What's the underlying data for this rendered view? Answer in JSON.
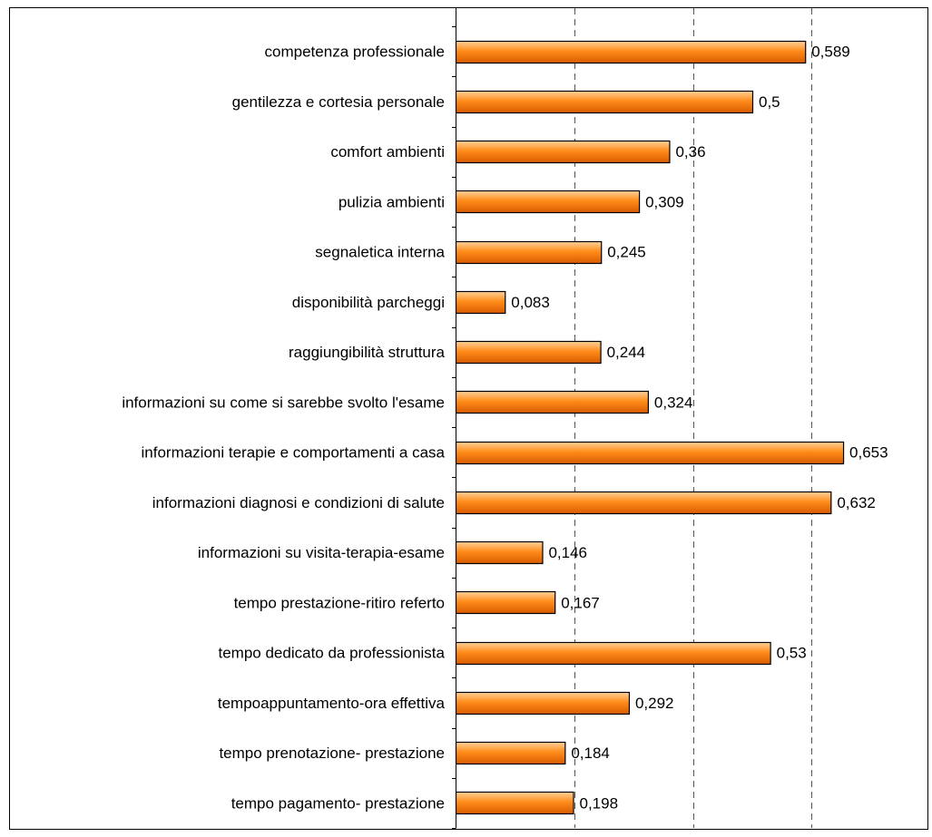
{
  "chart_data": {
    "type": "bar",
    "orientation": "horizontal",
    "categories": [
      "competenza professionale",
      "gentilezza e cortesia personale",
      "comfort ambienti",
      "pulizia ambienti",
      "segnaletica interna",
      "disponibilità parcheggi",
      "raggiungibilità struttura",
      "informazioni su come si sarebbe svolto l'esame",
      "informazioni terapie e comportamenti a casa",
      "informazioni diagnosi e condizioni di salute",
      "informazioni su visita-terapia-esame",
      "tempo prestazione-ritiro referto",
      "tempo dedicato da professionista",
      "tempoappuntamento-ora effettiva",
      "tempo prenotazione- prestazione",
      "tempo pagamento- prestazione"
    ],
    "values": [
      0.589,
      0.5,
      0.36,
      0.309,
      0.245,
      0.083,
      0.244,
      0.324,
      0.653,
      0.632,
      0.146,
      0.167,
      0.53,
      0.292,
      0.184,
      0.198
    ],
    "value_labels": [
      "0,589",
      "0,5",
      "0,36",
      "0,309",
      "0,245",
      "0,083",
      "0,244",
      "0,324",
      "0,653",
      "0,632",
      "0,146",
      "0,167",
      "0,53",
      "0,292",
      "0,184",
      "0,198"
    ],
    "xlim": [
      0,
      0.7
    ],
    "gridlines_x": [
      0.2,
      0.4,
      0.6
    ],
    "grid": "dashed vertical",
    "legend": "none",
    "colors": {
      "bar_top": "#ffd29a",
      "bar_mid": "#ff8c1a",
      "bar_bottom": "#d85c00",
      "bar_stroke": "#000000",
      "grid": "#555555",
      "axis": "#000000"
    }
  }
}
